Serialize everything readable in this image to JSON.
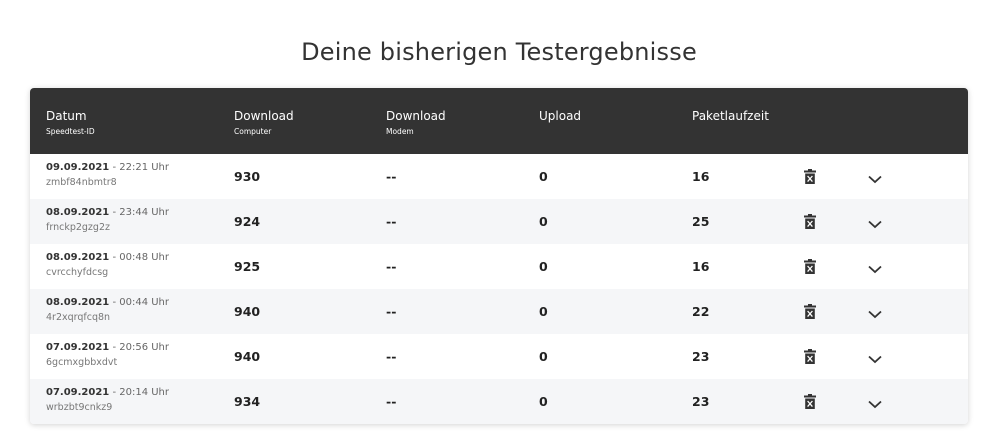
{
  "page": {
    "title": "Deine bisherigen Testergebnisse"
  },
  "table": {
    "columns": [
      {
        "label": "Datum",
        "sublabel": "Speedtest-ID"
      },
      {
        "label": "Download",
        "sublabel": "Computer"
      },
      {
        "label": "Download",
        "sublabel": "Modem"
      },
      {
        "label": "Upload",
        "sublabel": ""
      },
      {
        "label": "Paketlaufzeit",
        "sublabel": ""
      }
    ],
    "rows": [
      {
        "date": "09.09.2021",
        "time": " - 22:21 Uhr",
        "id": "zmbf84nbmtr8",
        "download_computer": "930",
        "download_modem": "--",
        "upload": "0",
        "ping": "16"
      },
      {
        "date": "08.09.2021",
        "time": " - 23:44 Uhr",
        "id": "frnckp2gzg2z",
        "download_computer": "924",
        "download_modem": "--",
        "upload": "0",
        "ping": "25"
      },
      {
        "date": "08.09.2021",
        "time": " - 00:48 Uhr",
        "id": "cvrcchyfdcsg",
        "download_computer": "925",
        "download_modem": "--",
        "upload": "0",
        "ping": "16"
      },
      {
        "date": "08.09.2021",
        "time": " - 00:44 Uhr",
        "id": "4r2xqrqfcq8n",
        "download_computer": "940",
        "download_modem": "--",
        "upload": "0",
        "ping": "22"
      },
      {
        "date": "07.09.2021",
        "time": " - 20:56 Uhr",
        "id": "6gcmxgbbxdvt",
        "download_computer": "940",
        "download_modem": "--",
        "upload": "0",
        "ping": "23"
      },
      {
        "date": "07.09.2021",
        "time": " - 20:14 Uhr",
        "id": "wrbzbt9cnkz9",
        "download_computer": "934",
        "download_modem": "--",
        "upload": "0",
        "ping": "23"
      }
    ],
    "icons": {
      "delete": "trash-icon",
      "expand": "chevron-down-icon"
    }
  },
  "colors": {
    "header_bg": "#333333",
    "row_alt": "#f5f6f8",
    "text": "#333333"
  }
}
